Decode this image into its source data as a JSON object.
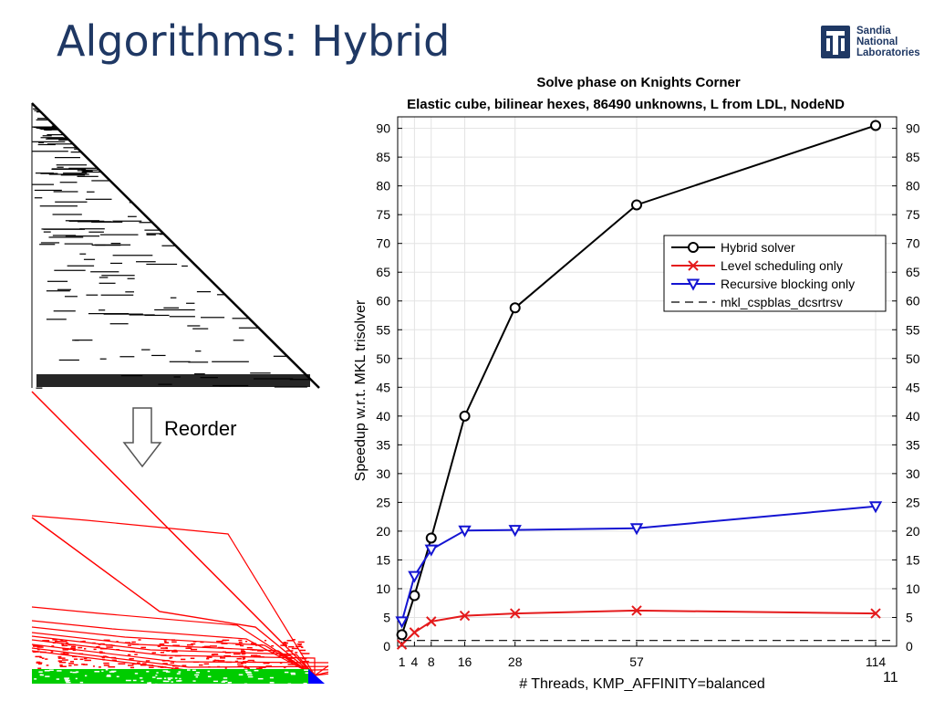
{
  "slide": {
    "title": "Algorithms: Hybrid",
    "reorder_label": "Reorder",
    "page_number": "11",
    "logo": {
      "line1": "Sandia",
      "line2": "National",
      "line3": "Laboratories",
      "color": "#1f3864"
    }
  },
  "colors": {
    "title": "#1f3864",
    "hybrid": "#000000",
    "level": "#e41a1c",
    "recursive": "#1414d2",
    "mkl": "#000000",
    "matrix_red": "#ff0000",
    "matrix_green": "#00cc00",
    "matrix_blue": "#0000ff"
  },
  "chart_data": {
    "type": "line",
    "title": "Solve phase on Knights Corner",
    "subtitle": "Elastic cube, bilinear hexes, 86490 unknowns, L from LDL, NodeND",
    "xlabel": "# Threads, KMP_AFFINITY=balanced",
    "ylabel": "Speedup w.r.t. MKL trisolver",
    "x": [
      1,
      4,
      8,
      16,
      28,
      57,
      114
    ],
    "x_tick_labels": [
      "1",
      "4",
      "8",
      "16",
      "28",
      "57",
      "114"
    ],
    "xlim": [
      0,
      119
    ],
    "ylim": [
      0,
      92
    ],
    "y_ticks": [
      0,
      5,
      10,
      15,
      20,
      25,
      30,
      35,
      40,
      45,
      50,
      55,
      60,
      65,
      70,
      75,
      80,
      85,
      90
    ],
    "grid": true,
    "legend_position": "top-right",
    "series": [
      {
        "name": "Hybrid solver",
        "values": [
          2,
          8.8,
          18.8,
          40,
          58.8,
          76.7,
          90.5
        ],
        "color": "#000000",
        "marker": "circle",
        "dash": false
      },
      {
        "name": "Level scheduling only",
        "values": [
          0.3,
          2.4,
          4.3,
          5.3,
          5.7,
          6.2,
          5.7
        ],
        "color": "#e41a1c",
        "marker": "x",
        "dash": false
      },
      {
        "name": "Recursive blocking only",
        "values": [
          4.3,
          12.2,
          16.8,
          20.1,
          20.2,
          20.5,
          24.3
        ],
        "color": "#1414d2",
        "marker": "triangle-down",
        "dash": false
      },
      {
        "name": "mkl_cspblas_dcsrtrsv",
        "values": [
          1,
          1,
          1,
          1,
          1,
          1,
          1
        ],
        "color": "#000000",
        "marker": "none",
        "dash": true
      }
    ]
  }
}
